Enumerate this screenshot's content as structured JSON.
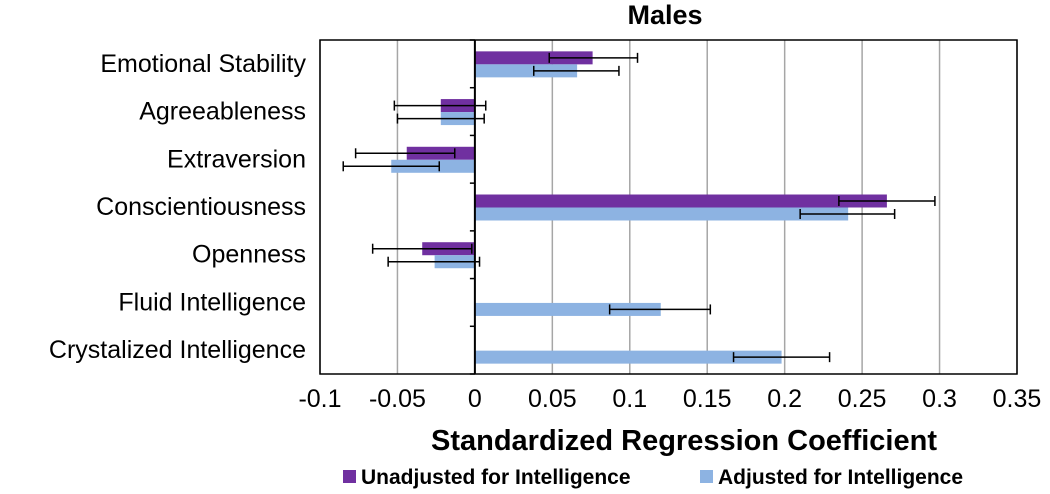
{
  "chart_data": {
    "type": "bar",
    "orientation": "horizontal",
    "title": "Males",
    "xlabel": "Standardized Regression Coefficient",
    "ylabel": "",
    "categories": [
      "Emotional Stability",
      "Agreeableness",
      "Extraversion",
      "Conscientiousness",
      "Openness",
      "Fluid Intelligence",
      "Crystalized Intelligence"
    ],
    "series": [
      {
        "name": "Unadjusted for Intelligence",
        "color": "#7030a0",
        "values": [
          0.076,
          -0.022,
          -0.044,
          0.266,
          -0.034,
          null,
          null
        ],
        "error_low": [
          0.048,
          -0.052,
          -0.077,
          0.235,
          -0.066,
          null,
          null
        ],
        "error_high": [
          0.105,
          0.007,
          -0.013,
          0.297,
          -0.002,
          null,
          null
        ]
      },
      {
        "name": "Adjusted for Intelligence",
        "color": "#8db3e2",
        "values": [
          0.066,
          -0.022,
          -0.054,
          0.241,
          -0.026,
          0.12,
          0.198
        ],
        "error_low": [
          0.038,
          -0.05,
          -0.085,
          0.21,
          -0.056,
          0.087,
          0.167
        ],
        "error_high": [
          0.093,
          0.006,
          -0.023,
          0.271,
          0.003,
          0.152,
          0.229
        ]
      }
    ],
    "xlim": [
      -0.1,
      0.35
    ],
    "x_ticks": [
      -0.1,
      -0.05,
      0,
      0.05,
      0.1,
      0.15,
      0.2,
      0.25,
      0.3,
      0.35
    ],
    "x_tick_labels": [
      "-0.1",
      "-0.05",
      "0",
      "0.05",
      "0.1",
      "0.15",
      "0.2",
      "0.25",
      "0.3",
      "0.35"
    ],
    "grid": true,
    "legend": {
      "position": "bottom",
      "entries": [
        "Unadjusted for Intelligence",
        "Adjusted for Intelligence"
      ]
    }
  }
}
